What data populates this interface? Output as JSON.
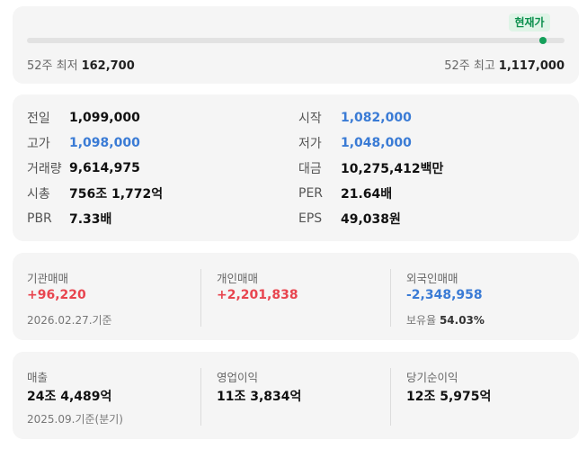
{
  "range": {
    "current_badge": "현재가",
    "low_label": "52주 최저",
    "low_value": "162,700",
    "high_label": "52주 최고",
    "high_value": "1,117,000",
    "current_position_fraction": 0.96,
    "marker_color": "#14a05a"
  },
  "quote": {
    "left": [
      {
        "label": "전일",
        "value": "1,099,000",
        "color": "default"
      },
      {
        "label": "고가",
        "value": "1,098,000",
        "color": "blue"
      },
      {
        "label": "거래량",
        "value": "9,614,975",
        "color": "default"
      },
      {
        "label": "시총",
        "value": "756조 1,772억",
        "color": "default"
      },
      {
        "label": "PBR",
        "value": "7.33배",
        "color": "default"
      }
    ],
    "right": [
      {
        "label": "시작",
        "value": "1,082,000",
        "color": "blue"
      },
      {
        "label": "저가",
        "value": "1,048,000",
        "color": "blue"
      },
      {
        "label": "대금",
        "value": "10,275,412백만",
        "color": "default"
      },
      {
        "label": "PER",
        "value": "21.64배",
        "color": "default"
      },
      {
        "label": "EPS",
        "value": "49,038원",
        "color": "default"
      }
    ]
  },
  "trading": {
    "institution_label": "기관매매",
    "institution_value": "+96,220",
    "individual_label": "개인매매",
    "individual_value": "+2,201,838",
    "foreign_label": "외국인매매",
    "foreign_value": "-2,348,958",
    "date_note": "2026.02.27.기준",
    "holding_label": "보유율",
    "holding_value": "54.03%"
  },
  "financials": {
    "sales_label": "매출",
    "sales_value": "24조 4,489억",
    "op_label": "영업이익",
    "op_value": "11조 3,834억",
    "net_label": "당기순이익",
    "net_value": "12조 5,975억",
    "date_note": "2025.09.기준(분기)"
  },
  "colors": {
    "up": "#e8454f",
    "down": "#3a7bd5",
    "accent_green": "#0b8f4d"
  }
}
